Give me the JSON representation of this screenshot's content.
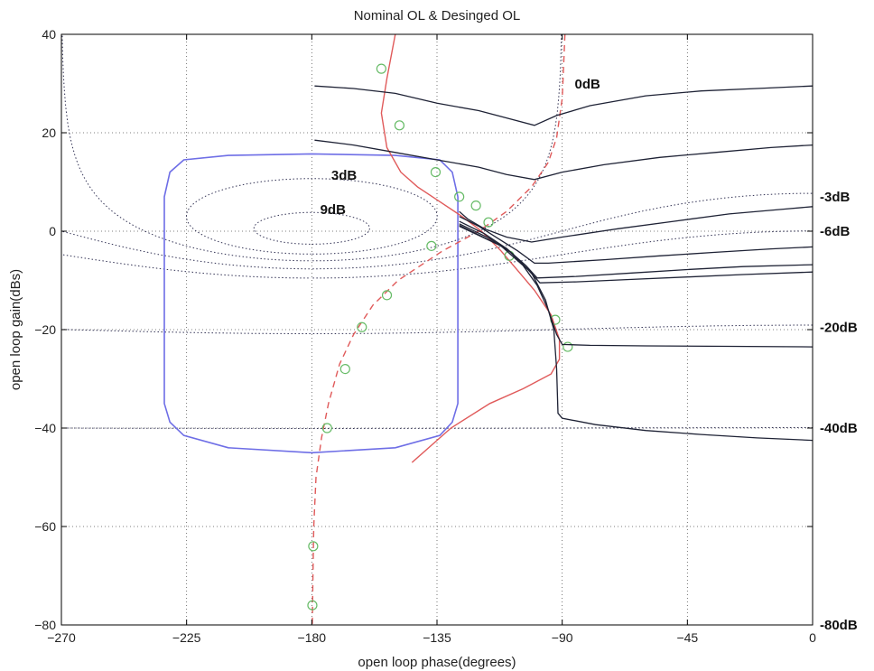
{
  "chart_data": {
    "type": "line",
    "title": "Nominal OL & Desinged OL",
    "xlabel": "open loop phase(degrees)",
    "ylabel": "open loop gain(dBs)",
    "xlim": [
      -270,
      0
    ],
    "ylim": [
      -80,
      40
    ],
    "xticks": [
      -270,
      -225,
      -180,
      -135,
      -90,
      -45,
      0
    ],
    "yticks": [
      -80,
      -60,
      -40,
      -20,
      0,
      20,
      40
    ],
    "xtick_labels": [
      "−270",
      "−225",
      "−180",
      "−135",
      "−90",
      "−45",
      "0"
    ],
    "ytick_labels": [
      "−80",
      "−60",
      "−40",
      "−20",
      "0",
      "20",
      "40"
    ],
    "grid": true,
    "colors": {
      "nichols_grid": "#333355",
      "bound": "#6e6ee6",
      "nominal": "#e05a5a",
      "designed": "#e05a5a",
      "markers": "#66bb66",
      "templates": "#1e2235"
    },
    "annotations": {
      "inside": [
        {
          "text": "0dB",
          "x": -85.5,
          "y": 29
        },
        {
          "text": "3dB",
          "x": -173,
          "y": 10.5
        },
        {
          "text": "9dB",
          "x": -177,
          "y": 3.5
        }
      ],
      "right": [
        {
          "text": "-3dB",
          "y": 7
        },
        {
          "text": "-6dB",
          "y": 0
        },
        {
          "text": "-20dB",
          "y": -19.5
        },
        {
          "text": "-40dB",
          "y": -40
        },
        {
          "text": "-80dB",
          "y": -80
        }
      ]
    },
    "series": [
      {
        "kind": "bound",
        "values": [
          [
            -127.5,
            7
          ],
          [
            -129.5,
            12
          ],
          [
            -134,
            14.5
          ],
          [
            -150,
            15.4
          ],
          [
            -180,
            15.7
          ],
          [
            -210,
            15.4
          ],
          [
            -226,
            14.5
          ],
          [
            -231,
            12
          ],
          [
            -233,
            7
          ],
          [
            -233,
            -35
          ],
          [
            -231,
            -38.8
          ],
          [
            -226,
            -41.5
          ],
          [
            -210,
            -44
          ],
          [
            -180,
            -45
          ],
          [
            -150,
            -44
          ],
          [
            -134,
            -41.5
          ],
          [
            -129.5,
            -38.8
          ],
          [
            -127.5,
            -35
          ],
          [
            -127.5,
            7
          ]
        ]
      },
      {
        "kind": "nominal",
        "values": [
          [
            -150,
            40
          ],
          [
            -153,
            31
          ],
          [
            -155,
            24
          ],
          [
            -153,
            17
          ],
          [
            -148,
            12
          ],
          [
            -142,
            9
          ],
          [
            -134,
            6
          ],
          [
            -126,
            3
          ],
          [
            -119,
            0
          ],
          [
            -112,
            -4
          ],
          [
            -106,
            -8
          ],
          [
            -100,
            -12
          ],
          [
            -94,
            -17
          ],
          [
            -91,
            -22
          ],
          [
            -91,
            -26
          ],
          [
            -94,
            -29
          ],
          [
            -104,
            -32
          ],
          [
            -116,
            -35
          ],
          [
            -130,
            -40
          ],
          [
            -144,
            -47
          ]
        ]
      },
      {
        "kind": "designed",
        "values": [
          [
            -89,
            40
          ],
          [
            -90,
            27
          ],
          [
            -92,
            19
          ],
          [
            -95,
            14
          ],
          [
            -101,
            9
          ],
          [
            -110,
            4
          ],
          [
            -120,
            0
          ],
          [
            -133,
            -4
          ],
          [
            -149,
            -10
          ],
          [
            -158,
            -15
          ],
          [
            -165,
            -21
          ],
          [
            -170,
            -27
          ],
          [
            -174,
            -35
          ],
          [
            -176.5,
            -42
          ],
          [
            -178.5,
            -50
          ],
          [
            -179.3,
            -60
          ],
          [
            -179.6,
            -70
          ],
          [
            -179.8,
            -80
          ]
        ]
      },
      {
        "kind": "markers",
        "values": [
          [
            -155,
            33
          ],
          [
            -148.5,
            21.5
          ],
          [
            -135.5,
            12
          ],
          [
            -127,
            7
          ],
          [
            -121,
            5.2
          ],
          [
            -116.5,
            1.8
          ],
          [
            -137,
            -3
          ],
          [
            -109,
            -5
          ],
          [
            -153,
            -13
          ],
          [
            -92.5,
            -18
          ],
          [
            -88,
            -23.5
          ],
          [
            -162,
            -19.5
          ],
          [
            -168,
            -28
          ],
          [
            -174.5,
            -40
          ],
          [
            -179.5,
            -64
          ],
          [
            -179.8,
            -76
          ]
        ]
      },
      {
        "kind": "template",
        "values": [
          [
            -179,
            29.5
          ],
          [
            -165,
            29
          ],
          [
            -150,
            28
          ],
          [
            -135,
            26
          ],
          [
            -120,
            24.5
          ],
          [
            -110,
            23
          ],
          [
            -100,
            21.5
          ],
          [
            -92,
            23.5
          ],
          [
            -80,
            25.5
          ],
          [
            -60,
            27.5
          ],
          [
            -40,
            28.5
          ],
          [
            -20,
            29
          ],
          [
            0,
            29.5
          ]
        ]
      },
      {
        "kind": "template",
        "values": [
          [
            -179,
            18.5
          ],
          [
            -165,
            17.5
          ],
          [
            -150,
            16
          ],
          [
            -135,
            14.5
          ],
          [
            -120,
            13
          ],
          [
            -110,
            11.5
          ],
          [
            -100,
            10.5
          ],
          [
            -90,
            12
          ],
          [
            -75,
            13.5
          ],
          [
            -55,
            15
          ],
          [
            -35,
            16
          ],
          [
            -15,
            17
          ],
          [
            0,
            17.5
          ]
        ]
      },
      {
        "kind": "template",
        "values": [
          [
            -127,
            4
          ],
          [
            -124,
            2.5
          ],
          [
            -118,
            0.5
          ],
          [
            -110,
            -1.2
          ],
          [
            -101,
            -2.2
          ],
          [
            -90,
            -1.2
          ],
          [
            -70,
            0.5
          ],
          [
            -50,
            2
          ],
          [
            -30,
            3.5
          ],
          [
            -10,
            4.5
          ],
          [
            0,
            5
          ]
        ]
      },
      {
        "kind": "template",
        "values": [
          [
            -127,
            3
          ],
          [
            -120,
            1
          ],
          [
            -113,
            -1.5
          ],
          [
            -106,
            -4
          ],
          [
            -100,
            -6.5
          ],
          [
            -95,
            -6.5
          ],
          [
            -75,
            -5.8
          ],
          [
            -55,
            -5
          ],
          [
            -35,
            -4.3
          ],
          [
            -15,
            -3.6
          ],
          [
            0,
            -3.2
          ]
        ]
      },
      {
        "kind": "template",
        "values": [
          [
            -127,
            2
          ],
          [
            -118,
            -0.5
          ],
          [
            -110,
            -3.5
          ],
          [
            -103,
            -7
          ],
          [
            -99,
            -9.5
          ],
          [
            -85,
            -9.2
          ],
          [
            -65,
            -8.5
          ],
          [
            -45,
            -7.8
          ],
          [
            -25,
            -7.2
          ],
          [
            0,
            -6.8
          ]
        ]
      },
      {
        "kind": "template",
        "values": [
          [
            -127,
            1.5
          ],
          [
            -116,
            -1.5
          ],
          [
            -108,
            -4.5
          ],
          [
            -102,
            -8
          ],
          [
            -98,
            -10.5
          ],
          [
            -85,
            -10.3
          ],
          [
            -65,
            -9.8
          ],
          [
            -45,
            -9.3
          ],
          [
            -25,
            -8.8
          ],
          [
            0,
            -8.3
          ]
        ]
      },
      {
        "kind": "template",
        "values": [
          [
            -127,
            1.2
          ],
          [
            -112,
            -3
          ],
          [
            -104,
            -7
          ],
          [
            -99,
            -11
          ],
          [
            -95,
            -16
          ],
          [
            -92,
            -21
          ],
          [
            -90,
            -23
          ],
          [
            -80,
            -23.2
          ],
          [
            -60,
            -23.3
          ],
          [
            -30,
            -23.4
          ],
          [
            0,
            -23.5
          ]
        ]
      },
      {
        "kind": "template",
        "values": [
          [
            -127,
            1
          ],
          [
            -110,
            -3.5
          ],
          [
            -101,
            -8.5
          ],
          [
            -96,
            -14
          ],
          [
            -93,
            -20
          ],
          [
            -92,
            -28
          ],
          [
            -91.5,
            -37
          ],
          [
            -90,
            -38
          ],
          [
            -78,
            -39.3
          ],
          [
            -60,
            -40.5
          ],
          [
            -40,
            -41.3
          ],
          [
            -20,
            -42
          ],
          [
            0,
            -42.5
          ]
        ]
      }
    ]
  }
}
